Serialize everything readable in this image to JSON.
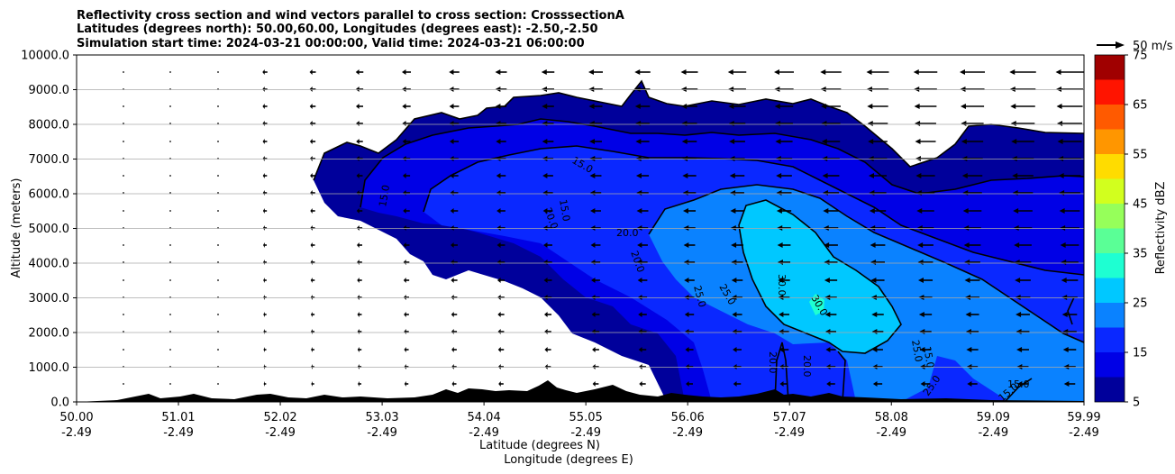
{
  "chart_data": {
    "type": "heatmap",
    "title_lines": [
      "Reflectivity cross section and wind vectors parallel to cross section: CrosssectionA",
      "Latitudes (degrees north): 50.00,60.00, Longitudes (degrees east): -2.50,-2.50",
      "Simulation start time: 2024-03-21 00:00:00, Valid time: 2024-03-21 06:00:00"
    ],
    "ylabel": "Altitude (meters)",
    "xlabel_lines": [
      "Latitude (degrees N)",
      "Longitude (degrees E)"
    ],
    "ylim": [
      0,
      10000
    ],
    "yticks": [
      "0.0",
      "1000.0",
      "2000.0",
      "3000.0",
      "4000.0",
      "5000.0",
      "6000.0",
      "7000.0",
      "8000.0",
      "9000.0",
      "10000.0"
    ],
    "xlim": [
      50.0,
      59.99
    ],
    "xticks": [
      {
        "lat": "50.00",
        "lon": "-2.49"
      },
      {
        "lat": "51.01",
        "lon": "-2.49"
      },
      {
        "lat": "52.02",
        "lon": "-2.49"
      },
      {
        "lat": "53.03",
        "lon": "-2.49"
      },
      {
        "lat": "54.04",
        "lon": "-2.49"
      },
      {
        "lat": "55.05",
        "lon": "-2.49"
      },
      {
        "lat": "56.06",
        "lon": "-2.49"
      },
      {
        "lat": "57.07",
        "lon": "-2.49"
      },
      {
        "lat": "58.08",
        "lon": "-2.49"
      },
      {
        "lat": "59.09",
        "lon": "-2.49"
      },
      {
        "lat": "59.99",
        "lon": "-2.49"
      }
    ],
    "grid": "horizontal",
    "colorbar": {
      "label": "Reflectivity dBZ",
      "levels": [
        5,
        10,
        15,
        20,
        25,
        30,
        35,
        40,
        45,
        50,
        55,
        60,
        65,
        70,
        75
      ],
      "tick_labels": [
        "5",
        "15",
        "25",
        "35",
        "45",
        "55",
        "65",
        "75"
      ],
      "colors": [
        "#00009b",
        "#0000e6",
        "#0a28ff",
        "#0a82ff",
        "#00c8ff",
        "#1effd2",
        "#5aff96",
        "#96ff5a",
        "#d2ff1e",
        "#ffdc00",
        "#ff9600",
        "#ff5a00",
        "#ff1400",
        "#a00000"
      ]
    },
    "vector_key_label": "50 m/s",
    "contour_labels": [
      "15.0",
      "15.0",
      "15.0",
      "20.0",
      "20.0",
      "20.0",
      "25.0",
      "25.0",
      "30.0",
      "30.0",
      "25.0",
      "15.0",
      "25.0",
      "20.0",
      "15.0",
      "20.0",
      "15.0"
    ]
  }
}
